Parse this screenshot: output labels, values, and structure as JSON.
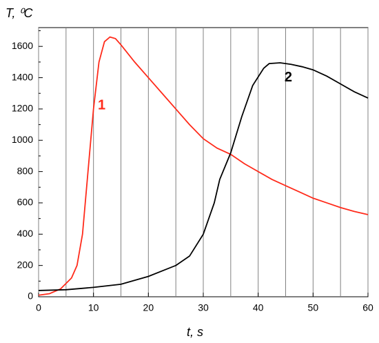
{
  "chart_data": {
    "type": "line",
    "x_label": "t, s",
    "y_label": "T, ⁰C",
    "xlim": [
      0,
      60
    ],
    "ylim": [
      0,
      1720
    ],
    "xticks": [
      0,
      10,
      20,
      30,
      40,
      50,
      60
    ],
    "xminor": [
      5,
      15,
      25,
      35,
      45,
      55
    ],
    "yticks": [
      0,
      200,
      400,
      600,
      800,
      1000,
      1200,
      1400,
      1600
    ],
    "yminor": [
      100,
      300,
      500,
      700,
      900,
      1100,
      1300,
      1500,
      1700
    ],
    "grid": true,
    "series": [
      {
        "name": "1",
        "color": "#ff2a1a",
        "x": [
          0,
          2,
          4,
          6,
          7,
          8,
          9,
          10,
          11,
          12,
          13,
          14,
          15,
          17.5,
          20,
          22.5,
          25,
          27.5,
          30,
          32.5,
          35,
          37.5,
          40,
          42.5,
          45,
          47.5,
          50,
          52.5,
          55,
          57.5,
          60
        ],
        "values": [
          10,
          20,
          50,
          120,
          200,
          400,
          800,
          1200,
          1500,
          1630,
          1660,
          1650,
          1610,
          1500,
          1400,
          1300,
          1200,
          1100,
          1010,
          950,
          910,
          850,
          800,
          750,
          710,
          670,
          630,
          600,
          570,
          545,
          525
        ]
      },
      {
        "name": "2",
        "color": "#000000",
        "x": [
          0,
          5,
          10,
          15,
          20,
          25,
          27.5,
          30,
          32,
          33,
          35,
          37,
          39,
          41,
          42,
          44,
          46,
          48,
          50,
          52.5,
          55,
          57.5,
          60
        ],
        "values": [
          40,
          45,
          60,
          80,
          130,
          200,
          260,
          400,
          600,
          750,
          920,
          1150,
          1350,
          1460,
          1490,
          1495,
          1485,
          1470,
          1450,
          1410,
          1360,
          1310,
          1270
        ]
      }
    ],
    "series_label_at": [
      [
        11.5,
        1220
      ],
      [
        45.5,
        1400
      ]
    ]
  }
}
